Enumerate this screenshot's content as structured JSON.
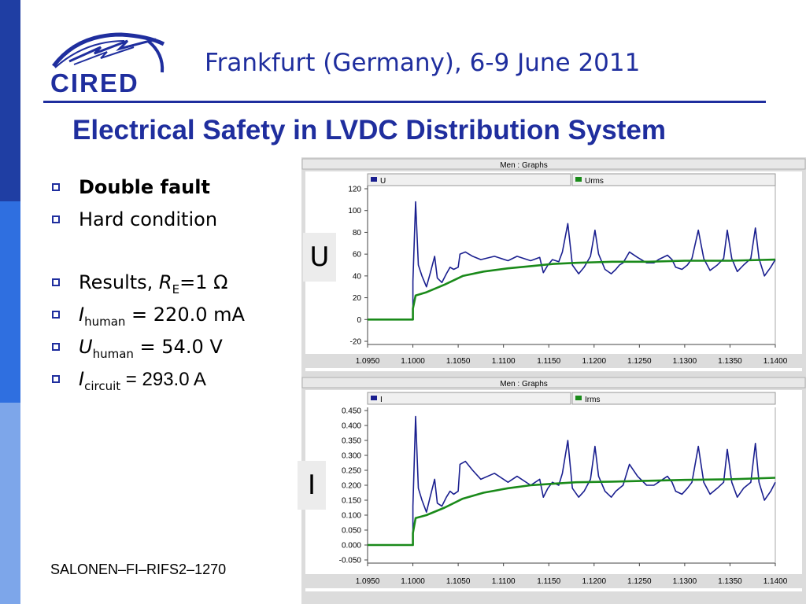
{
  "header": {
    "logo_text": "CIRED",
    "event": "Frankfurt (Germany), 6-9 June 2011"
  },
  "slide": {
    "title": "Electrical Safety in LVDC Distribution System",
    "bullets": {
      "b1": "Double fault",
      "b2": "Hard condition",
      "b3_text": "Results, ",
      "b3_var": "R",
      "b3_sub": "E",
      "b3_val": "=1 Ω",
      "b4_var": "I",
      "b4_sub": "human",
      "b4_val": " = 220.0 mA",
      "b5_var": "U",
      "b5_sub": "human",
      "b5_val": " = 54.0 V",
      "b6_var": "I",
      "b6_sub": "circuit",
      "b6_val": " = 293.0 A"
    },
    "footer_code": "SALONEN–FI–RIFS2–1270",
    "tag_u": "U",
    "tag_i": "I"
  },
  "colors": {
    "brand_blue": "#1f2e9e",
    "series_instant": "#1a1f8f",
    "series_rms": "#1a8a1a"
  },
  "chart_data": [
    {
      "type": "line",
      "title": "Men : Graphs",
      "xlim": [
        1.095,
        1.14
      ],
      "ylim": [
        -20,
        120
      ],
      "x_ticks": [
        "1.0950",
        "1.1000",
        "1.1050",
        "1.1100",
        "1.1150",
        "1.1200",
        "1.1250",
        "1.1300",
        "1.1350",
        "1.1400"
      ],
      "y_ticks": [
        "120",
        "100",
        "80",
        "60",
        "40",
        "20",
        "0",
        "-20"
      ],
      "legend_placement": "top",
      "series": [
        {
          "name": "U",
          "color": "#1a1f8f",
          "points": [
            [
              1.095,
              0
            ],
            [
              1.1,
              0
            ],
            [
              1.1,
              35
            ],
            [
              1.1003,
              108
            ],
            [
              1.1006,
              50
            ],
            [
              1.101,
              40
            ],
            [
              1.1015,
              30
            ],
            [
              1.1019,
              42
            ],
            [
              1.1024,
              58
            ],
            [
              1.1027,
              38
            ],
            [
              1.1032,
              34
            ],
            [
              1.1037,
              42
            ],
            [
              1.1041,
              48
            ],
            [
              1.1045,
              46
            ],
            [
              1.105,
              48
            ],
            [
              1.1052,
              60
            ],
            [
              1.1058,
              62
            ],
            [
              1.1066,
              58
            ],
            [
              1.1075,
              55
            ],
            [
              1.109,
              58
            ],
            [
              1.1105,
              54
            ],
            [
              1.1115,
              58
            ],
            [
              1.113,
              54
            ],
            [
              1.114,
              57
            ],
            [
              1.1144,
              43
            ],
            [
              1.1149,
              50
            ],
            [
              1.1154,
              55
            ],
            [
              1.1161,
              53
            ],
            [
              1.1165,
              62
            ],
            [
              1.1171,
              88
            ],
            [
              1.1176,
              50
            ],
            [
              1.1183,
              42
            ],
            [
              1.1189,
              48
            ],
            [
              1.1196,
              58
            ],
            [
              1.1201,
              82
            ],
            [
              1.1205,
              60
            ],
            [
              1.1212,
              46
            ],
            [
              1.1219,
              42
            ],
            [
              1.1224,
              46
            ],
            [
              1.1228,
              50
            ],
            [
              1.1232,
              52
            ],
            [
              1.1239,
              62
            ],
            [
              1.1248,
              57
            ],
            [
              1.1258,
              52
            ],
            [
              1.1266,
              52
            ],
            [
              1.1271,
              55
            ],
            [
              1.1281,
              59
            ],
            [
              1.1286,
              55
            ],
            [
              1.129,
              48
            ],
            [
              1.1297,
              46
            ],
            [
              1.1303,
              50
            ],
            [
              1.1308,
              56
            ],
            [
              1.1315,
              82
            ],
            [
              1.1321,
              56
            ],
            [
              1.1328,
              45
            ],
            [
              1.1336,
              50
            ],
            [
              1.1343,
              56
            ],
            [
              1.1347,
              82
            ],
            [
              1.1352,
              56
            ],
            [
              1.1358,
              44
            ],
            [
              1.1365,
              50
            ],
            [
              1.1373,
              56
            ],
            [
              1.1378,
              84
            ],
            [
              1.1382,
              56
            ],
            [
              1.1388,
              40
            ],
            [
              1.1395,
              48
            ],
            [
              1.14,
              55
            ]
          ]
        },
        {
          "name": "Urms",
          "color": "#1a8a1a",
          "points": [
            [
              1.095,
              0
            ],
            [
              1.1,
              0
            ],
            [
              1.1,
              10
            ],
            [
              1.1003,
              22
            ],
            [
              1.1015,
              25
            ],
            [
              1.1035,
              32
            ],
            [
              1.1055,
              40
            ],
            [
              1.1078,
              44
            ],
            [
              1.1105,
              47
            ],
            [
              1.113,
              49
            ],
            [
              1.1155,
              51
            ],
            [
              1.118,
              52
            ],
            [
              1.122,
              53
            ],
            [
              1.126,
              53
            ],
            [
              1.13,
              54
            ],
            [
              1.135,
              54
            ],
            [
              1.14,
              55
            ]
          ]
        }
      ]
    },
    {
      "type": "line",
      "title": "Men : Graphs",
      "xlim": [
        1.095,
        1.14
      ],
      "ylim": [
        -0.05,
        0.45
      ],
      "x_ticks": [
        "1.0950",
        "1.1000",
        "1.1050",
        "1.1100",
        "1.1150",
        "1.1200",
        "1.1250",
        "1.1300",
        "1.1350",
        "1.1400"
      ],
      "y_ticks": [
        "0.450",
        "0.400",
        "0.350",
        "0.300",
        "0.250",
        "0.200",
        "0.150",
        "0.100",
        "0.050",
        "0.000",
        "-0.050"
      ],
      "legend_placement": "top",
      "series": [
        {
          "name": "I",
          "color": "#1a1f8f",
          "points": [
            [
              1.095,
              0
            ],
            [
              1.1,
              0
            ],
            [
              1.1,
              0.13
            ],
            [
              1.1003,
              0.43
            ],
            [
              1.1006,
              0.19
            ],
            [
              1.101,
              0.15
            ],
            [
              1.1015,
              0.11
            ],
            [
              1.1019,
              0.16
            ],
            [
              1.1024,
              0.22
            ],
            [
              1.1027,
              0.14
            ],
            [
              1.1032,
              0.13
            ],
            [
              1.1037,
              0.16
            ],
            [
              1.1041,
              0.18
            ],
            [
              1.1045,
              0.17
            ],
            [
              1.105,
              0.18
            ],
            [
              1.1052,
              0.27
            ],
            [
              1.1058,
              0.28
            ],
            [
              1.1066,
              0.25
            ],
            [
              1.1075,
              0.22
            ],
            [
              1.109,
              0.24
            ],
            [
              1.1105,
              0.21
            ],
            [
              1.1115,
              0.23
            ],
            [
              1.113,
              0.2
            ],
            [
              1.114,
              0.22
            ],
            [
              1.1144,
              0.16
            ],
            [
              1.1149,
              0.19
            ],
            [
              1.1154,
              0.21
            ],
            [
              1.1161,
              0.2
            ],
            [
              1.1165,
              0.24
            ],
            [
              1.1171,
              0.35
            ],
            [
              1.1176,
              0.19
            ],
            [
              1.1183,
              0.16
            ],
            [
              1.1189,
              0.18
            ],
            [
              1.1196,
              0.22
            ],
            [
              1.1201,
              0.33
            ],
            [
              1.1205,
              0.23
            ],
            [
              1.1212,
              0.18
            ],
            [
              1.1219,
              0.16
            ],
            [
              1.1224,
              0.18
            ],
            [
              1.1228,
              0.19
            ],
            [
              1.1232,
              0.2
            ],
            [
              1.1239,
              0.27
            ],
            [
              1.1248,
              0.23
            ],
            [
              1.1258,
              0.2
            ],
            [
              1.1266,
              0.2
            ],
            [
              1.1271,
              0.21
            ],
            [
              1.1281,
              0.23
            ],
            [
              1.1286,
              0.21
            ],
            [
              1.129,
              0.18
            ],
            [
              1.1297,
              0.17
            ],
            [
              1.1303,
              0.19
            ],
            [
              1.1308,
              0.21
            ],
            [
              1.1315,
              0.33
            ],
            [
              1.1321,
              0.21
            ],
            [
              1.1328,
              0.17
            ],
            [
              1.1336,
              0.19
            ],
            [
              1.1343,
              0.21
            ],
            [
              1.1347,
              0.32
            ],
            [
              1.1352,
              0.21
            ],
            [
              1.1358,
              0.16
            ],
            [
              1.1365,
              0.19
            ],
            [
              1.1373,
              0.21
            ],
            [
              1.1378,
              0.34
            ],
            [
              1.1382,
              0.21
            ],
            [
              1.1388,
              0.15
            ],
            [
              1.1395,
              0.18
            ],
            [
              1.14,
              0.21
            ]
          ]
        },
        {
          "name": "Irms",
          "color": "#1a8a1a",
          "points": [
            [
              1.095,
              0
            ],
            [
              1.1,
              0
            ],
            [
              1.1,
              0.04
            ],
            [
              1.1003,
              0.09
            ],
            [
              1.1015,
              0.1
            ],
            [
              1.1035,
              0.125
            ],
            [
              1.1055,
              0.155
            ],
            [
              1.1078,
              0.175
            ],
            [
              1.1105,
              0.19
            ],
            [
              1.113,
              0.2
            ],
            [
              1.1155,
              0.205
            ],
            [
              1.118,
              0.21
            ],
            [
              1.122,
              0.212
            ],
            [
              1.126,
              0.215
            ],
            [
              1.13,
              0.218
            ],
            [
              1.135,
              0.22
            ],
            [
              1.14,
              0.225
            ]
          ]
        }
      ]
    }
  ]
}
